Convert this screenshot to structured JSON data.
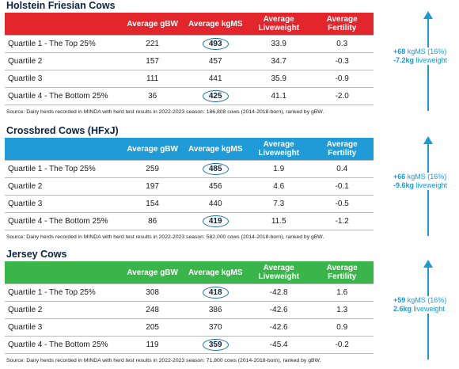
{
  "sections": [
    {
      "title": "Holstein Friesian Cows",
      "color": "#e3262b",
      "headers": [
        "",
        "Average gBW",
        "Average kgMS",
        "Average Liveweight",
        "Average Fertility"
      ],
      "rows": [
        [
          "Quartile 1 - The Top 25%",
          "221",
          "493",
          "33.9",
          "0.3"
        ],
        [
          "Quartile 2",
          "157",
          "457",
          "34.7",
          "-0.3"
        ],
        [
          "Quartile 3",
          "111",
          "441",
          "35.9",
          "-0.9"
        ],
        [
          "Quartile 4 - The Bottom 25%",
          "36",
          "425",
          "41.1",
          "-2.0"
        ]
      ],
      "source": "Source: Dairy herds recorded in MINDA with herd test results in 2022-2023 season: 186,808 cows (2014-2018-born), ranked by gBW.",
      "annotation": [
        {
          "strong": "+68",
          "text": "kgMS (16%)"
        },
        {
          "strong": "-7.2kg",
          "text": "liveweight"
        }
      ]
    },
    {
      "title": "Crossbred Cows (HFxJ)",
      "color": "#1f9bd7",
      "headers": [
        "",
        "Average gBW",
        "Average kgMS",
        "Average Liveweight",
        "Average Fertility"
      ],
      "rows": [
        [
          "Quartile 1 - The Top 25%",
          "259",
          "485",
          "1.9",
          "0.4"
        ],
        [
          "Quartile 2",
          "197",
          "456",
          "4.6",
          "-0.1"
        ],
        [
          "Quartile 3",
          "154",
          "440",
          "7.3",
          "-0.5"
        ],
        [
          "Quartile 4 - The Bottom 25%",
          "86",
          "419",
          "11.5",
          "-1.2"
        ]
      ],
      "source": "Source: Dairy herds recorded in MINDA with herd test results in 2022-2023 season: 582,000 cows (2014-2018-born), ranked by gBW.",
      "annotation": [
        {
          "strong": "+66",
          "text": "kgMS (16%)"
        },
        {
          "strong": "-9.6kg",
          "text": "liveweight"
        }
      ]
    },
    {
      "title": "Jersey Cows",
      "color": "#3ab54a",
      "headers": [
        "",
        "Average gBW",
        "Average kgMS",
        "Average Liveweight",
        "Average Fertility"
      ],
      "rows": [
        [
          "Quartile 1 - The Top 25%",
          "308",
          "418",
          "-42.8",
          "1.6"
        ],
        [
          "Quartile 2",
          "248",
          "386",
          "-42.6",
          "1.3"
        ],
        [
          "Quartile 3",
          "205",
          "370",
          "-42.6",
          "0.9"
        ],
        [
          "Quartile 4 - The Bottom 25%",
          "119",
          "359",
          "-45.4",
          "-0.2"
        ]
      ],
      "source": "Source: Dairy herds recorded in MINDA with herd test results in 2022-2023 season: 71,800 cows (2014-2018-born), ranked by gBW.",
      "annotation": [
        {
          "strong": "+59",
          "text": "kgMS (16%)"
        },
        {
          "strong": "2.6kg",
          "text": "liveweight"
        }
      ]
    }
  ]
}
